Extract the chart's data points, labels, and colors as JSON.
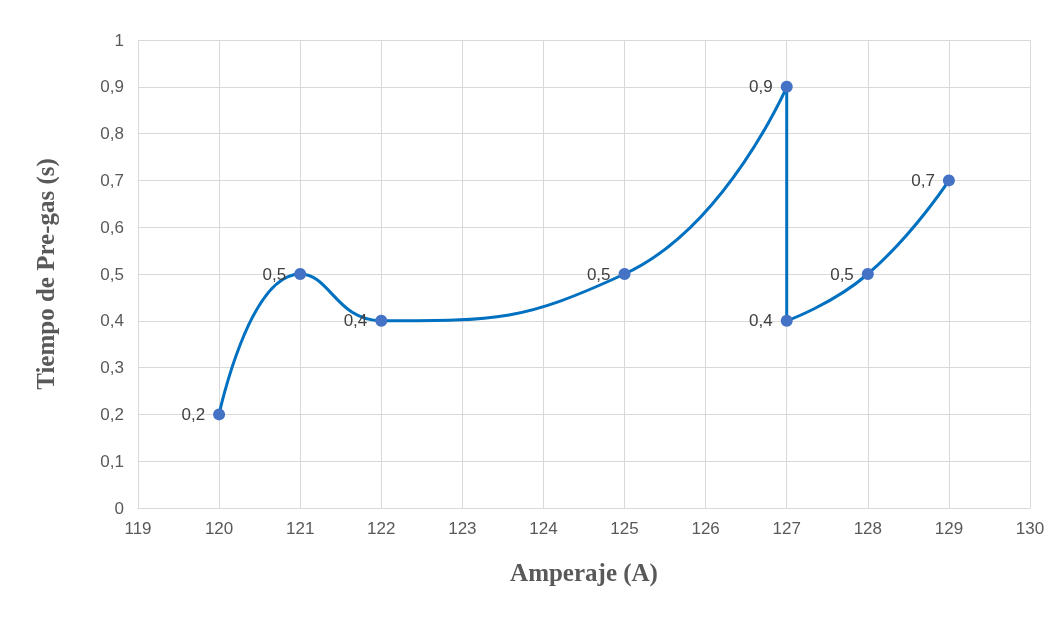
{
  "chart_data": {
    "type": "line",
    "xlabel": "Amperaje (A)",
    "ylabel": "Tiempo de Pre-gas (s)",
    "x": [
      120,
      121,
      122,
      125,
      127,
      127,
      128,
      129
    ],
    "series": [
      {
        "color": "#0070c0",
        "values": [
          0.2,
          0.5,
          0.4,
          0.5,
          0.9,
          0.4,
          0.5,
          0.7
        ],
        "value_labels": [
          "0,2",
          "0,5",
          "0,4",
          "0,5",
          "0,9",
          "0,4",
          "0,5",
          "0,7"
        ]
      }
    ],
    "xlim": [
      119,
      130
    ],
    "xticks": [
      119,
      120,
      121,
      122,
      123,
      124,
      125,
      126,
      127,
      128,
      129,
      130
    ],
    "ylim": [
      0,
      1
    ],
    "yticks": [
      0,
      {
        "value": 0.1,
        "label": "0,1"
      },
      {
        "value": 0.2,
        "label": "0,2"
      },
      {
        "value": 0.3,
        "label": "0,3"
      },
      {
        "value": 0.4,
        "label": "0,4"
      },
      {
        "value": 0.5,
        "label": "0,5"
      },
      {
        "value": 0.6,
        "label": "0,6"
      },
      {
        "value": 0.7,
        "label": "0,7"
      },
      {
        "value": 0.8,
        "label": "0,8"
      },
      {
        "value": 0.9,
        "label": "0,9"
      },
      1
    ],
    "grid": true,
    "marker": "circle",
    "line_style": "solid"
  }
}
